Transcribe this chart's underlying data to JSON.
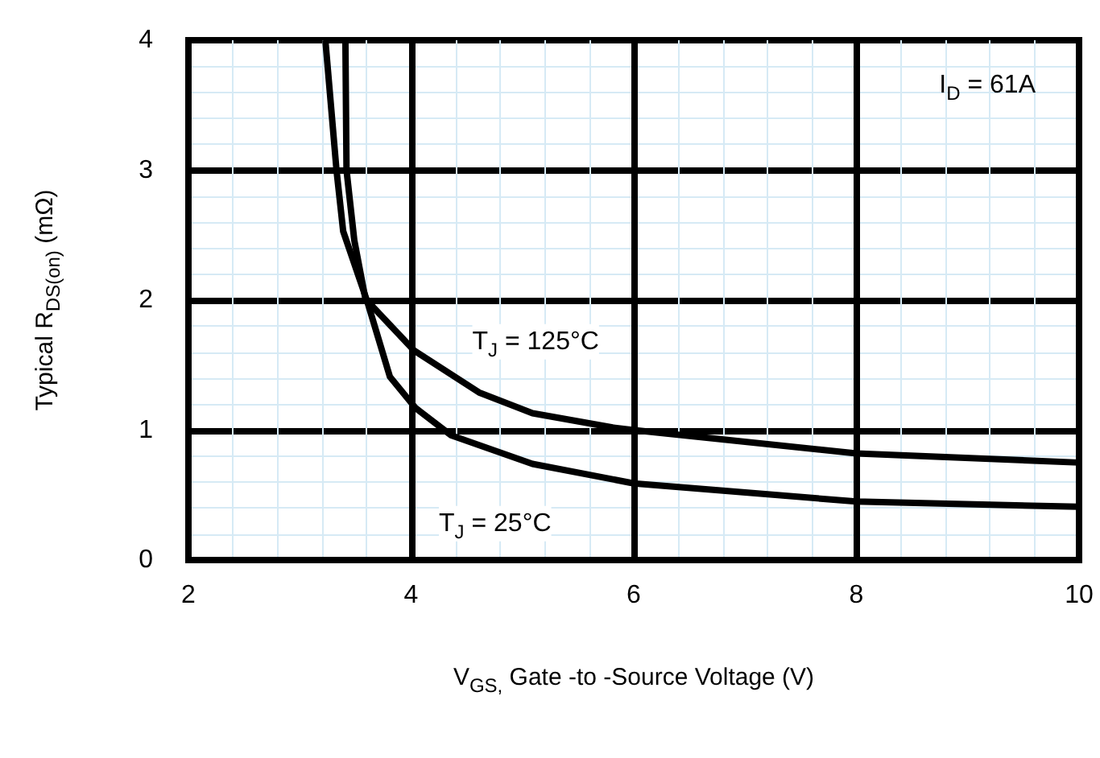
{
  "chart_data": {
    "type": "line",
    "xlabel": "V$_{GS,}$ Gate -to -Source Voltage (V)",
    "ylabel": "Typical R$_{DS(on)}$ (mΩ)",
    "annotations": [
      "I$_{D}$ = 61A"
    ],
    "xlim": [
      2,
      10
    ],
    "xticks": [
      2,
      4,
      6,
      8,
      10
    ],
    "ylim": [
      0,
      4
    ],
    "yticks": [
      0,
      1,
      2,
      3,
      4
    ],
    "grid": true,
    "legend": false,
    "marker": "none",
    "line_style": "solid",
    "series": [
      {
        "name": "T$_{J}$ = 25°C",
        "color": "#000000",
        "x": [
          3.23,
          3.33,
          3.39,
          3.61,
          3.81,
          4.04,
          4.36,
          5.09,
          6,
          8,
          10
        ],
        "values": [
          4.0,
          3.0,
          2.53,
          1.98,
          1.41,
          1.17,
          0.96,
          0.74,
          0.59,
          0.45,
          0.41
        ]
      },
      {
        "name": "T$_{J}$ = 125°C",
        "color": "#000000",
        "x": [
          3.41,
          3.42,
          3.49,
          3.59,
          4.03,
          4.61,
          5.09,
          5.81,
          6,
          8,
          10
        ],
        "values": [
          4.0,
          3.0,
          2.46,
          2.01,
          1.61,
          1.29,
          1.13,
          1.02,
          1.0,
          0.82,
          0.75
        ]
      }
    ]
  }
}
